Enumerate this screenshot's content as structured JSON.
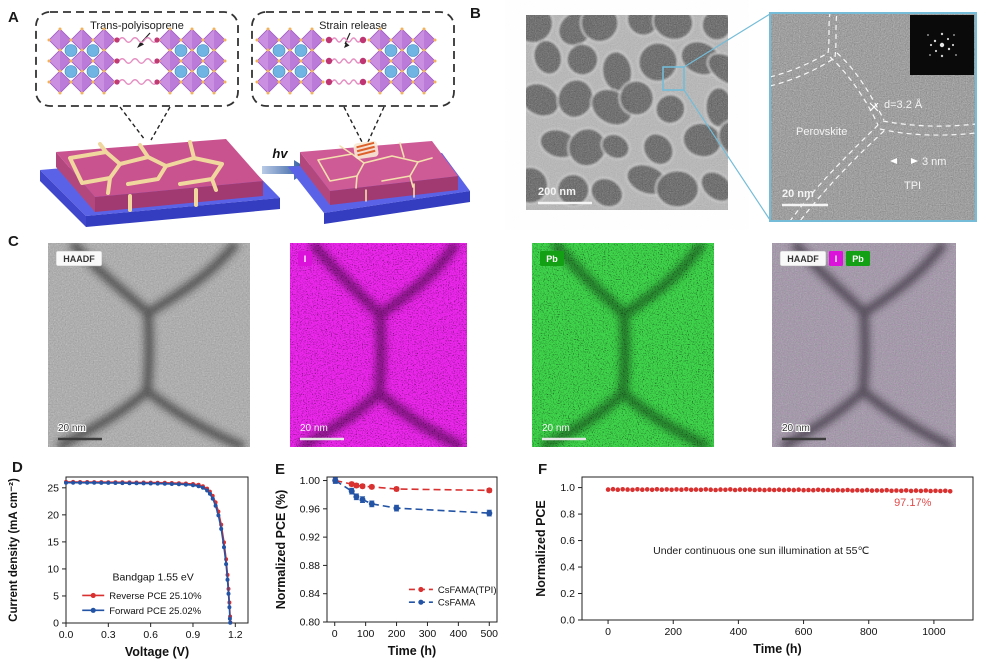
{
  "panels": {
    "A": {
      "label": "A",
      "left_inset_title": "Trans-polyisoprene",
      "right_inset_title": "Strain release",
      "arrow_label": "hv"
    },
    "B": {
      "label": "B",
      "tem_scale_bar": "200 nm",
      "hrtem": {
        "perovskite": "Perovskite",
        "d_spacing": "d=3.2 Å",
        "boundary_width": "3 nm",
        "tpi": "TPI",
        "scale_bar": "20 nm"
      }
    },
    "C": {
      "label": "C",
      "images": [
        {
          "badges": [
            "HAADF"
          ],
          "scale_bar": "20 nm"
        },
        {
          "badges": [
            "I"
          ],
          "scale_bar": "20 nm"
        },
        {
          "badges": [
            "Pb"
          ],
          "scale_bar": "20 nm"
        },
        {
          "badges": [
            "HAADF",
            "I",
            "Pb"
          ],
          "scale_bar": "20 nm"
        }
      ]
    },
    "D": {
      "label": "D"
    },
    "E": {
      "label": "E"
    },
    "F": {
      "label": "F"
    }
  },
  "colors": {
    "accent_red": "#d93030",
    "accent_blue": "#2353a4",
    "magenta_badge": "#da12da",
    "green_badge": "#14a014",
    "cyan_box": "#74bcd8"
  },
  "chart_data": [
    {
      "id": "D",
      "type": "line",
      "xlabel": "Voltage (V)",
      "ylabel": "Current density (mA cm⁻²)",
      "xlim": [
        0,
        1.29
      ],
      "ylim": [
        0,
        27
      ],
      "xtick_vals": [
        0,
        0.3,
        0.6,
        0.9,
        1.2
      ],
      "xtick_labels": [
        "0.0",
        "0.3",
        "0.6",
        "0.9",
        "1.2"
      ],
      "ytick_vals": [
        0,
        5,
        10,
        15,
        20,
        25
      ],
      "ytick_labels": [
        "0",
        "5",
        "10",
        "15",
        "20",
        "25"
      ],
      "annotations": [
        {
          "text": "Bandgap 1.55 eV",
          "x": 0.33,
          "y": 7.9,
          "color": "#111",
          "anchor": "start",
          "size": 10.5
        }
      ],
      "legend": {
        "x": 0.115,
        "y": 5.1,
        "dy": 2.75
      },
      "series": [
        {
          "name": "Reverse PCE 25.10%",
          "color": "#d93030",
          "line": "solid",
          "marker": true,
          "marker_r": 2.0,
          "points": [
            [
              0,
              26.1
            ],
            [
              0.05,
              26.1
            ],
            [
              0.1,
              26.08
            ],
            [
              0.15,
              26.07
            ],
            [
              0.2,
              26.06
            ],
            [
              0.25,
              26.05
            ],
            [
              0.3,
              26.04
            ],
            [
              0.35,
              26.03
            ],
            [
              0.4,
              26.02
            ],
            [
              0.45,
              26.0
            ],
            [
              0.5,
              25.99
            ],
            [
              0.55,
              25.98
            ],
            [
              0.6,
              25.96
            ],
            [
              0.65,
              25.94
            ],
            [
              0.7,
              25.92
            ],
            [
              0.75,
              25.89
            ],
            [
              0.8,
              25.85
            ],
            [
              0.85,
              25.79
            ],
            [
              0.9,
              25.7
            ],
            [
              0.94,
              25.55
            ],
            [
              0.97,
              25.3
            ],
            [
              1.0,
              24.85
            ],
            [
              1.02,
              24.3
            ],
            [
              1.04,
              23.5
            ],
            [
              1.06,
              22.3
            ],
            [
              1.08,
              20.6
            ],
            [
              1.1,
              18.2
            ],
            [
              1.12,
              14.9
            ],
            [
              1.135,
              11.8
            ],
            [
              1.145,
              8.9
            ],
            [
              1.152,
              6.3
            ],
            [
              1.158,
              3.8
            ],
            [
              1.163,
              1.2
            ],
            [
              1.165,
              0.1
            ]
          ]
        },
        {
          "name": "Forward PCE 25.02%",
          "color": "#2353a4",
          "line": "solid",
          "marker": true,
          "marker_r": 2.0,
          "points": [
            [
              0,
              25.95
            ],
            [
              0.05,
              25.95
            ],
            [
              0.1,
              25.94
            ],
            [
              0.15,
              25.93
            ],
            [
              0.2,
              25.92
            ],
            [
              0.25,
              25.91
            ],
            [
              0.3,
              25.9
            ],
            [
              0.35,
              25.89
            ],
            [
              0.4,
              25.87
            ],
            [
              0.45,
              25.86
            ],
            [
              0.5,
              25.84
            ],
            [
              0.55,
              25.82
            ],
            [
              0.6,
              25.8
            ],
            [
              0.65,
              25.78
            ],
            [
              0.7,
              25.75
            ],
            [
              0.75,
              25.71
            ],
            [
              0.8,
              25.66
            ],
            [
              0.85,
              25.59
            ],
            [
              0.9,
              25.48
            ],
            [
              0.94,
              25.3
            ],
            [
              0.97,
              25.0
            ],
            [
              1.0,
              24.5
            ],
            [
              1.02,
              23.9
            ],
            [
              1.04,
              23.0
            ],
            [
              1.06,
              21.7
            ],
            [
              1.08,
              19.9
            ],
            [
              1.1,
              17.4
            ],
            [
              1.12,
              14.0
            ],
            [
              1.135,
              10.9
            ],
            [
              1.145,
              8.0
            ],
            [
              1.152,
              5.4
            ],
            [
              1.158,
              2.9
            ],
            [
              1.162,
              0.8
            ],
            [
              1.164,
              0.05
            ]
          ]
        }
      ]
    },
    {
      "id": "E",
      "type": "line",
      "xlabel": "Time (h)",
      "ylabel": "Normalized PCE (%)",
      "xlim": [
        -25,
        525
      ],
      "ylim": [
        0.8,
        1.005
      ],
      "xtick_vals": [
        0,
        100,
        200,
        300,
        400,
        500
      ],
      "xtick_labels": [
        "0",
        "100",
        "200",
        "300",
        "400",
        "500"
      ],
      "ytick_vals": [
        0.8,
        0.84,
        0.88,
        0.92,
        0.96,
        1.0
      ],
      "ytick_labels": [
        "0.80",
        "0.84",
        "0.88",
        "0.92",
        "0.96",
        "1.00"
      ],
      "annotations": [],
      "legend": {
        "x": 240,
        "y": 0.846,
        "dy": 0.018
      },
      "series": [
        {
          "name": "CsFAMA(TPI)",
          "color": "#d93030",
          "line": "dashed",
          "marker": true,
          "marker_r": 3.0,
          "yerr": 0.0025,
          "points": [
            [
              2,
              1.0
            ],
            [
              55,
              0.995
            ],
            [
              70,
              0.993
            ],
            [
              90,
              0.992
            ],
            [
              120,
              0.991
            ],
            [
              200,
              0.988
            ],
            [
              500,
              0.986
            ]
          ]
        },
        {
          "name": "CsFAMA",
          "color": "#2353a4",
          "line": "dashed",
          "marker": true,
          "marker_r": 3.0,
          "yerr": 0.004,
          "points": [
            [
              2,
              1.0
            ],
            [
              55,
              0.985
            ],
            [
              70,
              0.977
            ],
            [
              90,
              0.973
            ],
            [
              120,
              0.967
            ],
            [
              200,
              0.961
            ],
            [
              500,
              0.954
            ]
          ]
        }
      ]
    },
    {
      "id": "F",
      "type": "scatter",
      "xlabel": "Time (h)",
      "ylabel": "Normalized PCE",
      "xlim": [
        -80,
        1120
      ],
      "ylim": [
        0,
        1.08
      ],
      "xtick_vals": [
        0,
        200,
        400,
        600,
        800,
        1000
      ],
      "xtick_labels": [
        "0",
        "200",
        "400",
        "600",
        "800",
        "1000"
      ],
      "ytick_vals": [
        0,
        0.2,
        0.4,
        0.6,
        0.8,
        1.0
      ],
      "ytick_labels": [
        "0.0",
        "0.2",
        "0.4",
        "0.6",
        "0.8",
        "1.0"
      ],
      "annotations": [
        {
          "text": "97.17%",
          "x": 935,
          "y": 0.86,
          "color": "#e14b4b",
          "anchor": "middle",
          "size": 11
        },
        {
          "text": "Under continuous one sun illumination at 55℃",
          "x": 470,
          "y": 0.5,
          "color": "#1a1a1a",
          "anchor": "middle",
          "size": 10.5
        }
      ],
      "legend": null,
      "series": [
        {
          "name": "",
          "color": "#d93030",
          "line": "none",
          "marker": true,
          "marker_r": 2.3,
          "points": [
            [
              0,
              0.985
            ],
            [
              15,
              0.988
            ],
            [
              30,
              0.984
            ],
            [
              45,
              0.987
            ],
            [
              60,
              0.985
            ],
            [
              75,
              0.983
            ],
            [
              90,
              0.987
            ],
            [
              105,
              0.984
            ],
            [
              120,
              0.986
            ],
            [
              135,
              0.983
            ],
            [
              150,
              0.987
            ],
            [
              165,
              0.984
            ],
            [
              180,
              0.986
            ],
            [
              195,
              0.983
            ],
            [
              210,
              0.986
            ],
            [
              225,
              0.984
            ],
            [
              240,
              0.987
            ],
            [
              255,
              0.983
            ],
            [
              270,
              0.985
            ],
            [
              285,
              0.983
            ],
            [
              300,
              0.986
            ],
            [
              315,
              0.984
            ],
            [
              330,
              0.982
            ],
            [
              345,
              0.985
            ],
            [
              360,
              0.983
            ],
            [
              375,
              0.986
            ],
            [
              390,
              0.982
            ],
            [
              405,
              0.985
            ],
            [
              420,
              0.983
            ],
            [
              435,
              0.985
            ],
            [
              450,
              0.982
            ],
            [
              465,
              0.984
            ],
            [
              480,
              0.981
            ],
            [
              495,
              0.984
            ],
            [
              510,
              0.982
            ],
            [
              525,
              0.984
            ],
            [
              540,
              0.981
            ],
            [
              555,
              0.983
            ],
            [
              570,
              0.981
            ],
            [
              585,
              0.984
            ],
            [
              600,
              0.98
            ],
            [
              615,
              0.982
            ],
            [
              630,
              0.98
            ],
            [
              645,
              0.983
            ],
            [
              660,
              0.98
            ],
            [
              675,
              0.982
            ],
            [
              690,
              0.979
            ],
            [
              705,
              0.981
            ],
            [
              720,
              0.979
            ],
            [
              735,
              0.982
            ],
            [
              750,
              0.978
            ],
            [
              765,
              0.98
            ],
            [
              780,
              0.978
            ],
            [
              795,
              0.981
            ],
            [
              810,
              0.977
            ],
            [
              825,
              0.979
            ],
            [
              840,
              0.977
            ],
            [
              855,
              0.98
            ],
            [
              870,
              0.976
            ],
            [
              885,
              0.978
            ],
            [
              900,
              0.976
            ],
            [
              915,
              0.979
            ],
            [
              930,
              0.975
            ],
            [
              945,
              0.977
            ],
            [
              960,
              0.975
            ],
            [
              975,
              0.978
            ],
            [
              990,
              0.974
            ],
            [
              1005,
              0.976
            ],
            [
              1020,
              0.974
            ],
            [
              1035,
              0.976
            ],
            [
              1050,
              0.972
            ]
          ]
        }
      ]
    }
  ]
}
